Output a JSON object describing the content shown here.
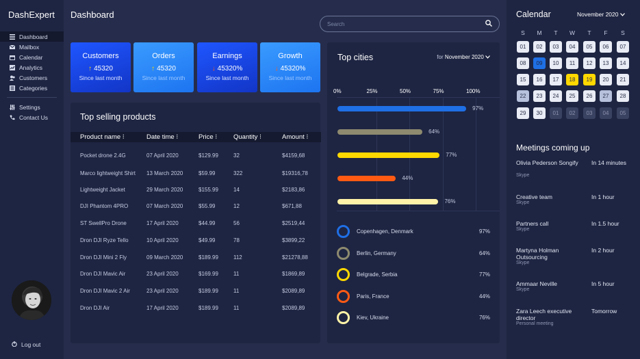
{
  "app": {
    "brand": "DashExpert",
    "page_title": "Dashboard"
  },
  "sidebar": {
    "items": [
      {
        "label": "Dashboard",
        "icon": "list-icon",
        "active": true
      },
      {
        "label": "Mailbox",
        "icon": "mail-icon"
      },
      {
        "label": "Calendar",
        "icon": "calendar-icon"
      },
      {
        "label": "Analytics",
        "icon": "chart-icon"
      },
      {
        "label": "Customers",
        "icon": "users-icon"
      },
      {
        "label": "Categories",
        "icon": "categories-icon"
      }
    ],
    "secondary": [
      {
        "label": "Settings",
        "icon": "settings-icon"
      },
      {
        "label": "Contact Us",
        "icon": "phone-icon"
      }
    ],
    "logout": "Log out"
  },
  "search": {
    "placeholder": "Search"
  },
  "stats": [
    {
      "title": "Customers",
      "value": "45320",
      "trend": "up",
      "sub": "Since last month"
    },
    {
      "title": "Orders",
      "value": "45320",
      "trend": "up",
      "sub": "Since last month"
    },
    {
      "title": "Earnings",
      "value": "45320%",
      "trend": "down",
      "sub": "Since last month"
    },
    {
      "title": "Growth",
      "value": "45320%",
      "trend": "down",
      "sub": "Since last month"
    }
  ],
  "products": {
    "title": "Top selling products",
    "columns": [
      "Product name",
      "Date time",
      "Price",
      "Quantity",
      "Amount"
    ],
    "rows": [
      [
        "Pocket drone 2.4G",
        "07 April 2020",
        "$129.99",
        "32",
        "$4159,68"
      ],
      [
        "Marco lightweight Shirt",
        "13 March 2020",
        "$59.99",
        "322",
        "$19316,78"
      ],
      [
        "Lightweight Jacket",
        "29 March 2020",
        "$155.99",
        "14",
        "$2183,86"
      ],
      [
        "DJI Phantom 4PRO",
        "07 March 2020",
        "$55.99",
        "12",
        "$671,88"
      ],
      [
        "ST SwellPro Drone",
        "17 April 2020",
        "$44.99",
        "56",
        "$2519,44"
      ],
      [
        "Dron DJI Ryze Tello",
        "10 April 2020",
        "$49.99",
        "78",
        "$3899,22"
      ],
      [
        "Dron DJI Mini 2 Fly",
        "09 March 2020",
        "$189.99",
        "112",
        "$21278,88"
      ],
      [
        "Dron DJI Mavic Air",
        "23 April 2020",
        "$169.99",
        "11",
        "$1869,89"
      ],
      [
        "Dron DJI Mavic 2 Air",
        "23 April 2020",
        "$189.99",
        "11",
        "$2089,89"
      ],
      [
        "Dron DJI Air",
        "17 April 2020",
        "$189.99",
        "11",
        "$2089,89"
      ]
    ]
  },
  "cities": {
    "title": "Top cities",
    "filter_prefix": "for",
    "filter_value": "November 2020",
    "legend": [
      {
        "name": "Copenhagen, Denmark",
        "pct": "97%",
        "color": "#1f6fe5"
      },
      {
        "name": "Berlin, Germany",
        "pct": "64%",
        "color": "#8d8a6f"
      },
      {
        "name": "Belgrade, Serbia",
        "pct": "77%",
        "color": "#ffd800"
      },
      {
        "name": "Paris, France",
        "pct": "44%",
        "color": "#ff5a14"
      },
      {
        "name": "Kiev, Ukraine",
        "pct": "76%",
        "color": "#fff3a8"
      }
    ]
  },
  "chart_data": {
    "type": "bar",
    "orientation": "horizontal",
    "categories": [
      "Copenhagen, Denmark",
      "Berlin, Germany",
      "Belgrade, Serbia",
      "Paris, France",
      "Kiev, Ukraine"
    ],
    "values": [
      97,
      64,
      77,
      44,
      76
    ],
    "value_labels": [
      "97%",
      "64%",
      "77%",
      "44%",
      "76%"
    ],
    "colors": [
      "#1f6fe5",
      "#8d8a6f",
      "#ffd800",
      "#ff5a14",
      "#fff3a8"
    ],
    "xticks": [
      "0%",
      "25%",
      "50%",
      "75%",
      "100%"
    ],
    "xlim": [
      0,
      100
    ],
    "grid": true,
    "title": "Top cities"
  },
  "calendar": {
    "title": "Calendar",
    "month": "November 2020",
    "weekdays": [
      "S",
      "M",
      "T",
      "W",
      "T",
      "F",
      "S"
    ],
    "days": [
      [
        "01",
        "02",
        "03",
        "04",
        "05",
        "06",
        "07"
      ],
      [
        "08",
        "09",
        "10",
        "11",
        "12",
        "13",
        "14"
      ],
      [
        "15",
        "16",
        "17",
        "18",
        "19",
        "20",
        "21"
      ],
      [
        "22",
        "23",
        "24",
        "25",
        "26",
        "27",
        "28"
      ],
      [
        "29",
        "30",
        "01",
        "02",
        "03",
        "04",
        "05"
      ]
    ],
    "today": "09",
    "highlighted": [
      "18",
      "19"
    ],
    "faint": [
      "22",
      "27"
    ]
  },
  "meetings": {
    "title": "Meetings coming up",
    "items": [
      {
        "name": "Olivia Pederson Songify",
        "time": "In 14 minutes",
        "kind": "Skype"
      },
      {
        "name": "Creative team",
        "time": "In 1 hour",
        "kind": "Skype"
      },
      {
        "name": "Partners call",
        "time": "In 1.5 hour",
        "kind": "Skype"
      },
      {
        "name": "Martyna Holman Outsourcing",
        "time": "In 2 hour",
        "kind": "Skype"
      },
      {
        "name": "Ammaar Neville",
        "time": "In 5 hour",
        "kind": "Skype"
      },
      {
        "name": "Zara Leech executive director",
        "time": "Tomorrow",
        "kind": "Personal meeting"
      }
    ]
  }
}
